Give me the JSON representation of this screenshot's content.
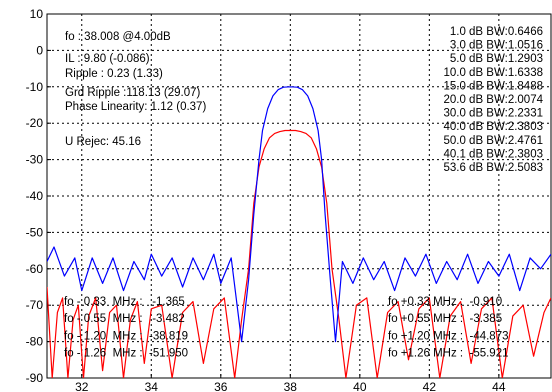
{
  "chart_data": {
    "type": "line",
    "title": "",
    "xlabel": "",
    "ylabel": "",
    "xlim": [
      31,
      45.5
    ],
    "ylim": [
      -90,
      10
    ],
    "grid": true,
    "grid_style": "dotted",
    "x_ticks": [
      32,
      34,
      36,
      38,
      40,
      42,
      44
    ],
    "y_ticks": [
      10,
      0,
      -10,
      -20,
      -30,
      -40,
      -50,
      -60,
      -70,
      -80,
      -90
    ],
    "series": [
      {
        "color": "#0000ff",
        "x": [
          31.0,
          31.2,
          31.5,
          31.8,
          32.0,
          32.3,
          32.6,
          32.9,
          33.2,
          33.5,
          33.8,
          34.0,
          34.3,
          34.6,
          34.9,
          35.2,
          35.5,
          35.8,
          36.0,
          36.3,
          36.6,
          36.8,
          36.95,
          37.1,
          37.2,
          37.35,
          37.5,
          37.65,
          37.8,
          38.0,
          38.2,
          38.35,
          38.5,
          38.65,
          38.8,
          38.9,
          39.0,
          39.15,
          39.3,
          39.5,
          39.8,
          40.1,
          40.4,
          40.7,
          41.0,
          41.3,
          41.6,
          41.9,
          42.2,
          42.5,
          42.8,
          43.1,
          43.4,
          43.7,
          44.0,
          44.3,
          44.6,
          44.9,
          45.2,
          45.5
        ],
        "y": [
          -58,
          -54,
          -62,
          -57,
          -66,
          -57,
          -64,
          -57,
          -66,
          -58,
          -63,
          -56,
          -62,
          -57,
          -65,
          -57,
          -63,
          -56,
          -64,
          -57,
          -80,
          -63,
          -45,
          -30,
          -22,
          -16,
          -12.5,
          -10.8,
          -10.1,
          -10.0,
          -10.1,
          -10.8,
          -12.5,
          -16,
          -22,
          -30,
          -45,
          -63,
          -80,
          -58,
          -64,
          -57,
          -63,
          -58,
          -66,
          -57,
          -62,
          -56,
          -64,
          -58,
          -63,
          -56,
          -64,
          -58,
          -62,
          -56,
          -66,
          -57,
          -60,
          -56
        ]
      },
      {
        "color": "#ff0000",
        "x": [
          31.0,
          31.15,
          31.3,
          31.45,
          31.6,
          31.75,
          31.9,
          32.05,
          32.2,
          32.4,
          32.6,
          32.8,
          33.0,
          33.2,
          33.4,
          33.6,
          33.8,
          34.0,
          34.3,
          34.6,
          34.9,
          35.2,
          35.5,
          35.8,
          36.1,
          36.4,
          36.6,
          36.8,
          36.95,
          37.1,
          37.25,
          37.4,
          37.55,
          37.7,
          37.85,
          38.0,
          38.15,
          38.3,
          38.45,
          38.6,
          38.75,
          38.9,
          39.05,
          39.2,
          39.4,
          39.6,
          39.9,
          40.2,
          40.5,
          40.8,
          41.1,
          41.4,
          41.7,
          42.0,
          42.3,
          42.6,
          42.9,
          43.2,
          43.5,
          43.8,
          44.1,
          44.4,
          44.7,
          45.0,
          45.3,
          45.5
        ],
        "y": [
          -65,
          -90,
          -72,
          -68,
          -90,
          -74,
          -70,
          -90,
          -73,
          -68,
          -88,
          -72,
          -70,
          -90,
          -74,
          -69,
          -86,
          -71,
          -70,
          -90,
          -72,
          -69,
          -86,
          -71,
          -68,
          -90,
          -74,
          -60,
          -42,
          -32,
          -27,
          -24,
          -22.8,
          -22.3,
          -22.0,
          -22.0,
          -22.0,
          -22.3,
          -22.8,
          -24,
          -27,
          -32,
          -42,
          -60,
          -74,
          -90,
          -70,
          -68,
          -90,
          -72,
          -69,
          -85,
          -71,
          -68,
          -90,
          -73,
          -69,
          -86,
          -71,
          -68,
          -90,
          -73,
          -70,
          -84,
          -72,
          -68
        ]
      }
    ],
    "annotations_left": [
      "fo : 38.008 @4.00dB",
      "IL : 9.80 (-0.086)",
      "Ripple : 0.23 (1.33)",
      "Grd Ripple :118.13 (29.07)",
      "Phase Linearity: 1.12 (0.37)",
      "U Rejec: 45.16"
    ],
    "annotations_right": [
      "1.0 dB BW:0.6466",
      "3.0 dB BW:1.0516",
      "5.0 dB BW:1.2903",
      "10.0 dB BW:1.6338",
      "15.0 dB BW:1.8488",
      "20.0 dB BW:2.0074",
      "30.0 dB BW:2.2331",
      "40.0 dB BW:2.3803",
      "50.0 dB BW:2.4761",
      "40.1 dB BW:2.3803",
      "53.6 dB BW:2.5083"
    ],
    "annotations_bottom_left": [
      "fo - 0.33  MHz :   -1.365",
      "fo - 0.55  MHz :   -3.482",
      "fo - 1.20  MHz :  -38.819",
      "fo - 1.26  MHz :  -51.950"
    ],
    "annotations_bottom_right": [
      "fo +0.33 MHz :  -0.910",
      "fo +0.55 MHz :  -3.385",
      "fo +1.20 MHz :  -44.873",
      "fo +1.26 MHz :  -55.921"
    ]
  }
}
